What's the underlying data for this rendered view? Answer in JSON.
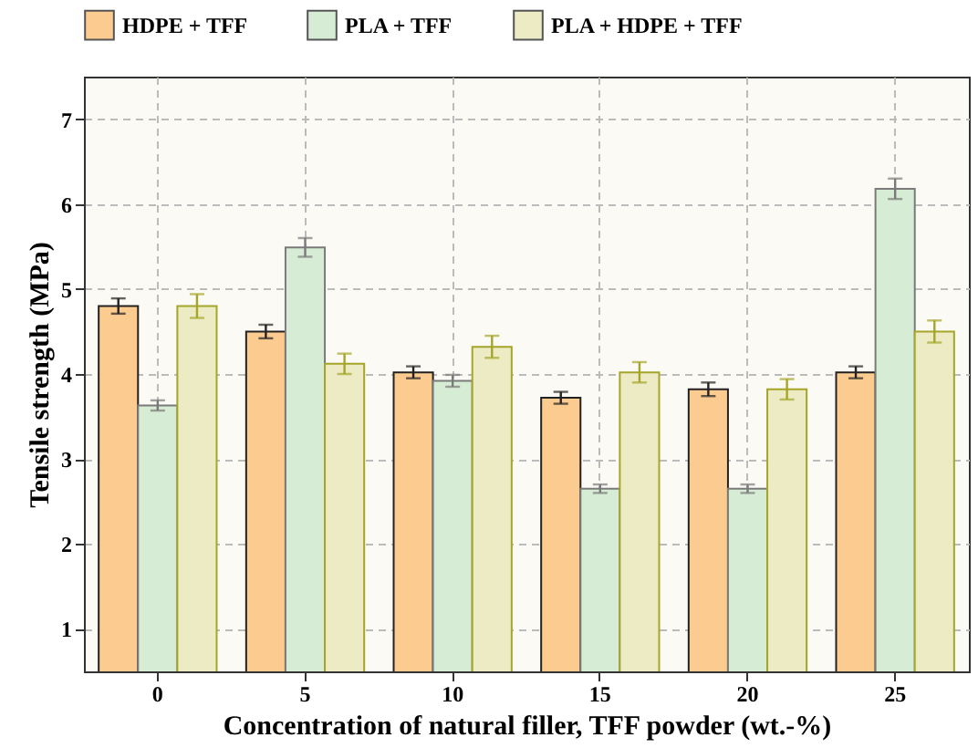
{
  "chart_data": {
    "type": "bar",
    "xlabel": "Concentration of natural filler, TFF powder (wt.-%)",
    "ylabel": "Tensile strength (MPa)",
    "categories": [
      "0",
      "5",
      "10",
      "15",
      "20",
      "25"
    ],
    "series": [
      {
        "name": "HDPE + TFF",
        "color": "#fccb90",
        "values": [
          4.8,
          4.5,
          4.02,
          3.72,
          3.82,
          4.02
        ],
        "errors": [
          0.09,
          0.08,
          0.07,
          0.07,
          0.08,
          0.07
        ]
      },
      {
        "name": "PLA + TFF",
        "color": "#d6ecd4",
        "values": [
          3.63,
          5.49,
          3.92,
          2.65,
          2.65,
          6.18
        ],
        "errors": [
          0.06,
          0.11,
          0.07,
          0.05,
          0.05,
          0.12
        ]
      },
      {
        "name": "PLA + HDPE + TFF",
        "color": "#ecebc4",
        "values": [
          4.8,
          4.12,
          4.32,
          4.02,
          3.82,
          4.5
        ],
        "errors": [
          0.14,
          0.12,
          0.13,
          0.12,
          0.12,
          0.13
        ]
      }
    ],
    "ylim": [
      0.5,
      7.5
    ],
    "yticks": [
      1,
      2,
      3,
      4,
      5,
      6,
      7
    ],
    "grid": true,
    "legend": "top"
  }
}
